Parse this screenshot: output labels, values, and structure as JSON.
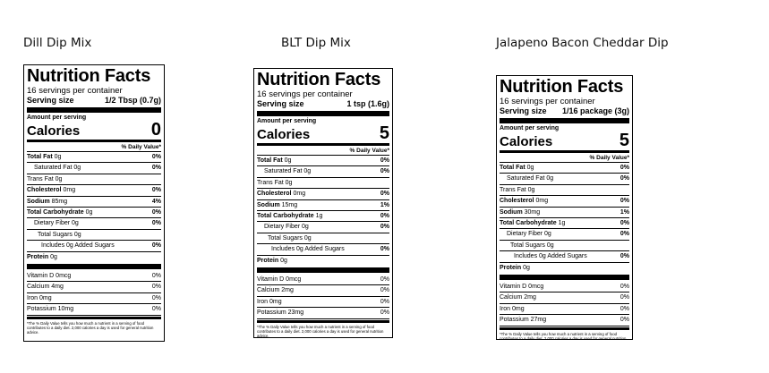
{
  "products": [
    {
      "title": "Dill Dip Mix",
      "panel": {
        "heading": "Nutrition Facts",
        "servings": "16 servings per container",
        "serving_label": "Serving size",
        "serving_value": "1/2 Tbsp (0.7g)",
        "amount_label": "Amount per serving",
        "calories_label": "Calories",
        "calories_value": "0",
        "dv_header": "% Daily Value*",
        "nutrients": [
          {
            "label": "Total Fat",
            "amount": "0g",
            "dv": "0%"
          },
          {
            "label": "Saturated Fat",
            "amount": "0g",
            "dv": "0%"
          },
          {
            "label": "Trans Fat",
            "amount": "0g",
            "dv": ""
          },
          {
            "label": "Cholesterol",
            "amount": "0mg",
            "dv": "0%"
          },
          {
            "label": "Sodium",
            "amount": "85mg",
            "dv": "4%"
          },
          {
            "label": "Total Carbohydrate",
            "amount": "0g",
            "dv": "0%"
          },
          {
            "label": "Dietary Fiber",
            "amount": "0g",
            "dv": "0%"
          },
          {
            "label": "Total Sugars",
            "amount": "0g",
            "dv": ""
          },
          {
            "label": "Includes 0g Added Sugars",
            "amount": "",
            "dv": "0%"
          },
          {
            "label": "Protein",
            "amount": "0g",
            "dv": ""
          }
        ],
        "vitamins": [
          {
            "label": "Vitamin D",
            "amount": "0mcg",
            "dv": "0%"
          },
          {
            "label": "Calcium",
            "amount": "4mg",
            "dv": "0%"
          },
          {
            "label": "Iron",
            "amount": "0mg",
            "dv": "0%"
          },
          {
            "label": "Potassium",
            "amount": "10mg",
            "dv": "0%"
          }
        ],
        "footnote": "*The % Daily Value tells you how much a nutrient in a serving of food contributes to a daily diet. 2,000 calories a day is used for general nutrition advice."
      }
    },
    {
      "title": "BLT Dip Mix",
      "panel": {
        "heading": "Nutrition Facts",
        "servings": "16 servings per container",
        "serving_label": "Serving size",
        "serving_value": "1 tsp (1.6g)",
        "amount_label": "Amount per serving",
        "calories_label": "Calories",
        "calories_value": "5",
        "dv_header": "% Daily Value*",
        "nutrients": [
          {
            "label": "Total Fat",
            "amount": "0g",
            "dv": "0%"
          },
          {
            "label": "Saturated Fat",
            "amount": "0g",
            "dv": "0%"
          },
          {
            "label": "Trans Fat",
            "amount": "0g",
            "dv": ""
          },
          {
            "label": "Cholesterol",
            "amount": "0mg",
            "dv": "0%"
          },
          {
            "label": "Sodium",
            "amount": "15mg",
            "dv": "1%"
          },
          {
            "label": "Total Carbohydrate",
            "amount": "1g",
            "dv": "0%"
          },
          {
            "label": "Dietary Fiber",
            "amount": "0g",
            "dv": "0%"
          },
          {
            "label": "Total Sugars",
            "amount": "0g",
            "dv": ""
          },
          {
            "label": "Includes 0g Added Sugars",
            "amount": "",
            "dv": "0%"
          },
          {
            "label": "Protein",
            "amount": "0g",
            "dv": ""
          }
        ],
        "vitamins": [
          {
            "label": "Vitamin D",
            "amount": "0mcg",
            "dv": "0%"
          },
          {
            "label": "Calcium",
            "amount": "2mg",
            "dv": "0%"
          },
          {
            "label": "Iron",
            "amount": "0mg",
            "dv": "0%"
          },
          {
            "label": "Potassium",
            "amount": "23mg",
            "dv": "0%"
          }
        ],
        "footnote": "*The % Daily Value tells you how much a nutrient in a serving of food contributes to a daily diet. 2,000 calories a day is used for general nutrition advice."
      }
    },
    {
      "title": "Jalapeno Bacon Cheddar Dip",
      "panel": {
        "heading": "Nutrition Facts",
        "servings": "16 servings per container",
        "serving_label": "Serving size",
        "serving_value": "1/16 package (3g)",
        "amount_label": "Amount per serving",
        "calories_label": "Calories",
        "calories_value": "5",
        "dv_header": "% Daily Value*",
        "nutrients": [
          {
            "label": "Total Fat",
            "amount": "0g",
            "dv": "0%"
          },
          {
            "label": "Saturated Fat",
            "amount": "0g",
            "dv": "0%"
          },
          {
            "label": "Trans Fat",
            "amount": "0g",
            "dv": ""
          },
          {
            "label": "Cholesterol",
            "amount": "0mg",
            "dv": "0%"
          },
          {
            "label": "Sodium",
            "amount": "30mg",
            "dv": "1%"
          },
          {
            "label": "Total Carbohydrate",
            "amount": "1g",
            "dv": "0%"
          },
          {
            "label": "Dietary Fiber",
            "amount": "0g",
            "dv": "0%"
          },
          {
            "label": "Total Sugars",
            "amount": "0g",
            "dv": ""
          },
          {
            "label": "Includes 0g Added Sugars",
            "amount": "",
            "dv": "0%"
          },
          {
            "label": "Protein",
            "amount": "0g",
            "dv": ""
          }
        ],
        "vitamins": [
          {
            "label": "Vitamin D",
            "amount": "0mcg",
            "dv": "0%"
          },
          {
            "label": "Calcium",
            "amount": "2mg",
            "dv": "0%"
          },
          {
            "label": "Iron",
            "amount": "0mg",
            "dv": "0%"
          },
          {
            "label": "Potassium",
            "amount": "27mg",
            "dv": "0%"
          }
        ],
        "footnote": "*The % Daily Value tells you how much a nutrient in a serving of food contributes to a daily diet. 2,000 calories a day is used for general nutrition advice."
      }
    }
  ]
}
